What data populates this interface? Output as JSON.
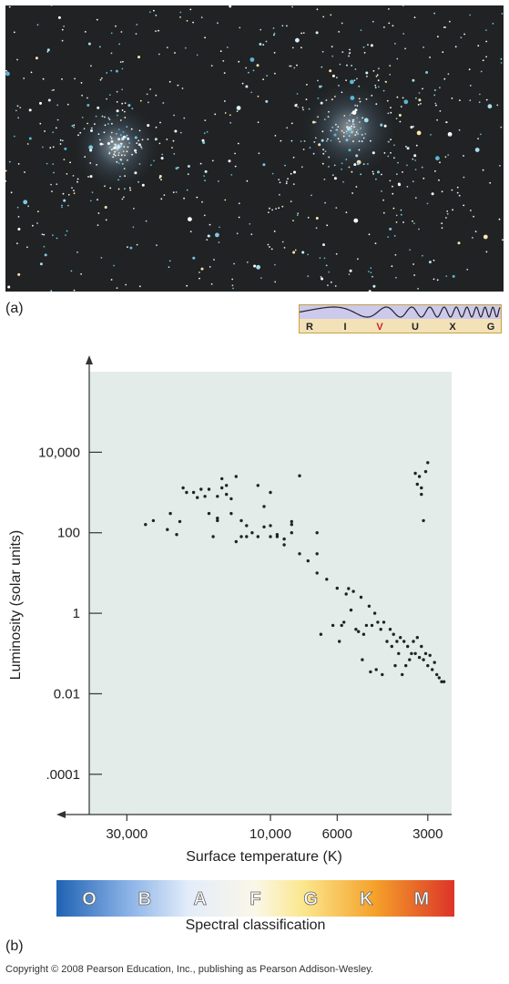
{
  "panel_a": {
    "label": "(a)",
    "wave_bands": [
      {
        "letter": "R",
        "color": "#222222"
      },
      {
        "letter": "I",
        "color": "#222222"
      },
      {
        "letter": "V",
        "color": "#cc2222"
      },
      {
        "letter": "U",
        "color": "#222222"
      },
      {
        "letter": "X",
        "color": "#222222"
      },
      {
        "letter": "G",
        "color": "#222222"
      }
    ]
  },
  "panel_b": {
    "label": "(b)"
  },
  "spectral": {
    "caption": "Spectral classification",
    "classes": [
      "O",
      "B",
      "A",
      "F",
      "G",
      "K",
      "M"
    ]
  },
  "copyright": "Copyright © 2008 Pearson Education, Inc., publishing as Pearson Addison-Wesley.",
  "colors": {
    "plot_background": "#e3ece8",
    "points": "#222222",
    "band_panel": "#f3e2b8"
  },
  "chart_data": {
    "type": "scatter",
    "title": "",
    "xlabel": "Surface temperature (K)",
    "ylabel": "Luminosity (solar units)",
    "x_scale": "log",
    "x_reversed": true,
    "y_scale": "log",
    "xlim": [
      40000,
      2500
    ],
    "ylim": [
      1e-05,
      1000000
    ],
    "x_ticks": [
      {
        "value": 30000,
        "label": "30,000"
      },
      {
        "value": 10000,
        "label": "10,000"
      },
      {
        "value": 6000,
        "label": "6000"
      },
      {
        "value": 3000,
        "label": "3000"
      }
    ],
    "y_ticks": [
      {
        "value": 10000,
        "label": "10,000"
      },
      {
        "value": 100,
        "label": "100"
      },
      {
        "value": 1,
        "label": "1"
      },
      {
        "value": 0.01,
        "label": "0.01"
      },
      {
        "value": 0.0001,
        "label": ".0001"
      }
    ],
    "grid": false,
    "points": [
      [
        26000,
        160
      ],
      [
        24500,
        200
      ],
      [
        21500,
        300
      ],
      [
        22000,
        120
      ],
      [
        20500,
        90
      ],
      [
        20000,
        190
      ],
      [
        19500,
        1300
      ],
      [
        19000,
        1000
      ],
      [
        18000,
        1000
      ],
      [
        17500,
        750
      ],
      [
        17000,
        1200
      ],
      [
        16000,
        300
      ],
      [
        16500,
        800
      ],
      [
        16000,
        1200
      ],
      [
        15500,
        80
      ],
      [
        15000,
        200
      ],
      [
        15000,
        230
      ],
      [
        15000,
        800
      ],
      [
        14500,
        2200
      ],
      [
        14500,
        1300
      ],
      [
        14000,
        900
      ],
      [
        14000,
        1500
      ],
      [
        13500,
        700
      ],
      [
        13500,
        300
      ],
      [
        13000,
        2500
      ],
      [
        13000,
        60
      ],
      [
        12500,
        200
      ],
      [
        12500,
        80
      ],
      [
        12000,
        150
      ],
      [
        12000,
        80
      ],
      [
        11500,
        100
      ],
      [
        11000,
        1500
      ],
      [
        11000,
        80
      ],
      [
        10500,
        140
      ],
      [
        10500,
        450
      ],
      [
        10000,
        150
      ],
      [
        10000,
        1000
      ],
      [
        10000,
        80
      ],
      [
        9500,
        80
      ],
      [
        9500,
        90
      ],
      [
        9000,
        70
      ],
      [
        9000,
        50
      ],
      [
        8500,
        100
      ],
      [
        8500,
        190
      ],
      [
        8500,
        160
      ],
      [
        8000,
        2600
      ],
      [
        8000,
        30
      ],
      [
        7500,
        20
      ],
      [
        7000,
        30
      ],
      [
        7000,
        100
      ],
      [
        7000,
        10
      ],
      [
        6500,
        7
      ],
      [
        6000,
        4.2
      ],
      [
        5500,
        4.1
      ],
      [
        5000,
        2.5
      ],
      [
        4700,
        1.5
      ],
      [
        4500,
        1.0
      ],
      [
        4400,
        0.6
      ],
      [
        4200,
        0.6
      ],
      [
        4000,
        0.4
      ],
      [
        3900,
        0.3
      ],
      [
        3800,
        0.2
      ],
      [
        3700,
        0.25
      ],
      [
        3600,
        0.2
      ],
      [
        3500,
        0.15
      ],
      [
        3400,
        0.1
      ],
      [
        3300,
        0.1
      ],
      [
        3200,
        0.08
      ],
      [
        3100,
        0.07
      ],
      [
        3000,
        0.05
      ],
      [
        2900,
        0.04
      ],
      [
        2800,
        0.03
      ],
      [
        2750,
        0.025
      ],
      [
        2700,
        0.02
      ],
      [
        2650,
        0.02
      ],
      [
        5600,
        3.0
      ],
      [
        5300,
        3.5
      ],
      [
        5200,
        0.4
      ],
      [
        5100,
        0.35
      ],
      [
        4900,
        0.3
      ],
      [
        4800,
        0.5
      ],
      [
        4600,
        0.5
      ],
      [
        4300,
        0.4
      ],
      [
        4100,
        0.2
      ],
      [
        3950,
        0.15
      ],
      [
        3850,
        0.05
      ],
      [
        3750,
        0.1
      ],
      [
        3650,
        0.03
      ],
      [
        3550,
        0.05
      ],
      [
        3450,
        0.07
      ],
      [
        3350,
        0.2
      ],
      [
        3250,
        0.25
      ],
      [
        3150,
        0.15
      ],
      [
        3050,
        0.1
      ],
      [
        2950,
        0.09
      ],
      [
        2850,
        0.06
      ],
      [
        6200,
        0.5
      ],
      [
        5800,
        0.5
      ],
      [
        5400,
        1.2
      ],
      [
        3300,
        3000
      ],
      [
        3250,
        1600
      ],
      [
        3200,
        2500
      ],
      [
        3150,
        1300
      ],
      [
        3150,
        900
      ],
      [
        3100,
        200
      ],
      [
        3050,
        3300
      ],
      [
        3000,
        5500
      ],
      [
        6800,
        0.3
      ],
      [
        5900,
        0.2
      ],
      [
        5700,
        0.6
      ],
      [
        4950,
        0.07
      ],
      [
        4650,
        0.035
      ],
      [
        4450,
        0.04
      ],
      [
        4250,
        0.03
      ]
    ]
  }
}
